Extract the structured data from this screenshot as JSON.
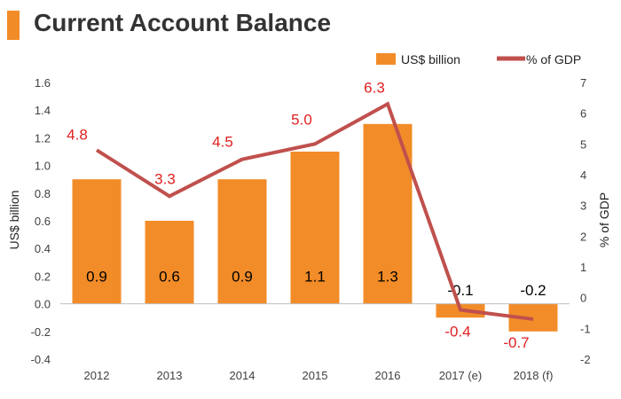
{
  "title": "Current Account Balance",
  "colors": {
    "bar": "#f28c28",
    "line": "#c0504d",
    "pct_label": "#e02020",
    "title_accent": "#f28c28"
  },
  "chart_data": {
    "type": "bar+line",
    "title": "Current Account Balance",
    "categories": [
      "2012",
      "2013",
      "2014",
      "2015",
      "2016",
      "2017 (e)",
      "2018 (f)"
    ],
    "series": [
      {
        "name": "US$ billion",
        "type": "bar",
        "axis": "left",
        "values": [
          0.9,
          0.6,
          0.9,
          1.1,
          1.3,
          -0.1,
          -0.2
        ],
        "labels": [
          "0.9",
          "0.6",
          "0.9",
          "1.1",
          "1.3",
          "-0.1",
          "-0.2"
        ]
      },
      {
        "name": "% of GDP",
        "type": "line",
        "axis": "right",
        "values": [
          4.8,
          3.3,
          4.5,
          5.0,
          6.3,
          -0.4,
          -0.7
        ],
        "labels": [
          "4.8",
          "3.3",
          "4.5",
          "5.0",
          "6.3",
          "-0.4",
          "-0.7"
        ]
      }
    ],
    "ylabel": "US$ billion",
    "ylim": [
      -0.4,
      1.6
    ],
    "yticks": [
      "1.6",
      "1.4",
      "1.2",
      "1.0",
      "0.8",
      "0.6",
      "0.4",
      "0.2",
      "0.0",
      "-0.2",
      "-0.4"
    ],
    "y2label": "% of GDP",
    "y2lim": [
      -2,
      7
    ],
    "y2ticks": [
      "7",
      "6",
      "5",
      "4",
      "3",
      "2",
      "1",
      "0",
      "-1",
      "-2"
    ],
    "legend_position": "top-right",
    "grid": false
  }
}
